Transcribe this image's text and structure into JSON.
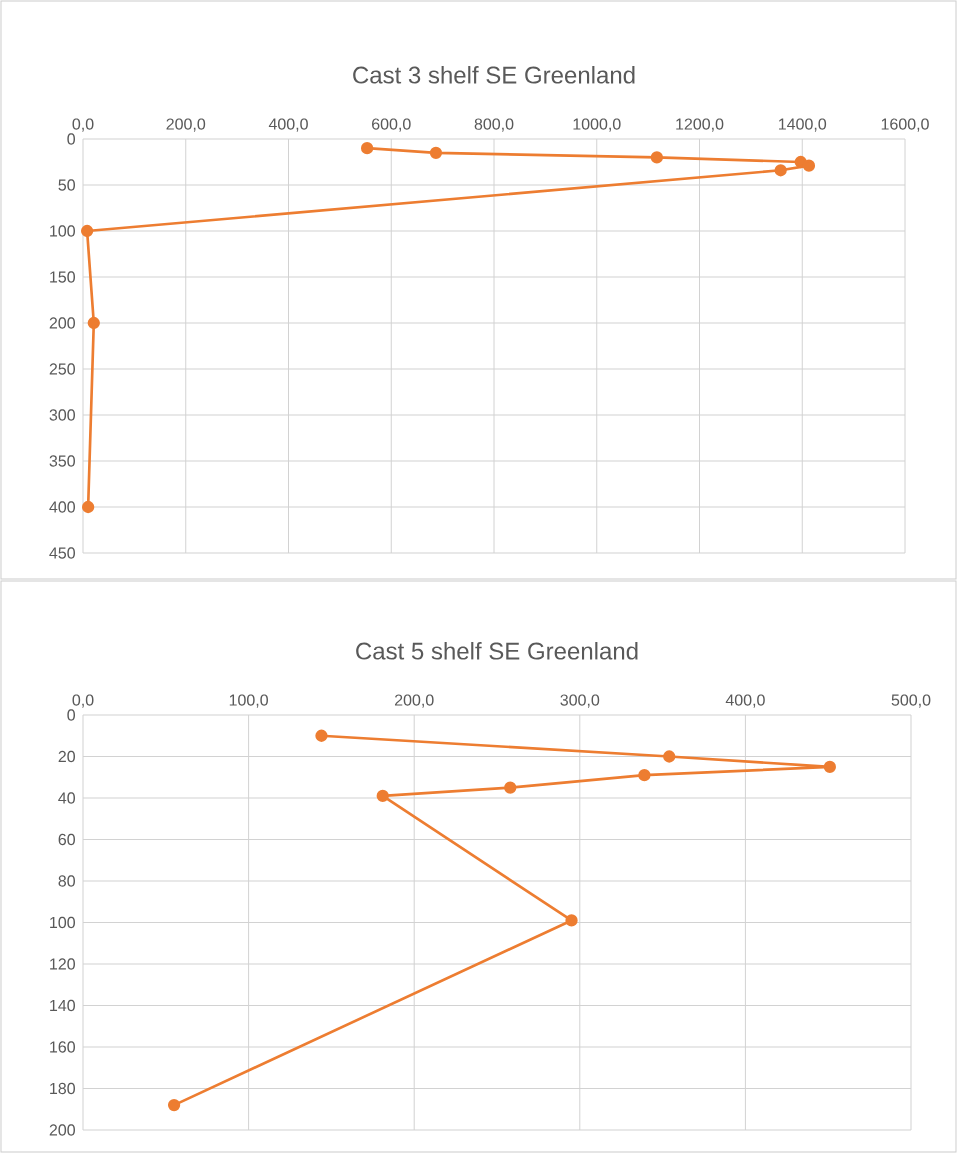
{
  "chart_data": [
    {
      "type": "line",
      "title": "Cast 3 shelf SE Greenland",
      "series": [
        {
          "color": "#ed7d31",
          "x": [
            553,
            687,
            1117,
            1397,
            1413,
            1358,
            8,
            21,
            10
          ],
          "values": [
            10,
            15,
            20,
            25,
            29,
            34,
            100,
            200,
            400
          ]
        }
      ],
      "xlim": [
        0,
        1600
      ],
      "xticks": [
        {
          "value": 0,
          "label": "0,0"
        },
        {
          "value": 200,
          "label": "200,0"
        },
        {
          "value": 400,
          "label": "400,0"
        },
        {
          "value": 600,
          "label": "600,0"
        },
        {
          "value": 800,
          "label": "800,0"
        },
        {
          "value": 1000,
          "label": "1000,0"
        },
        {
          "value": 1200,
          "label": "1200,0"
        },
        {
          "value": 1400,
          "label": "1400,0"
        },
        {
          "value": 1600,
          "label": "1600,0"
        }
      ],
      "ylim": [
        450,
        0
      ],
      "yticks": [
        0,
        50,
        100,
        150,
        200,
        250,
        300,
        350,
        400,
        450
      ],
      "grid": true,
      "marker": "circle",
      "line_style": "solid"
    },
    {
      "type": "line",
      "title": "Cast 5 shelf SE Greenland",
      "series": [
        {
          "color": "#ed7d31",
          "x": [
            144,
            354,
            451,
            339,
            258,
            181,
            295,
            55
          ],
          "values": [
            10,
            20,
            25,
            29,
            35,
            39,
            99,
            188
          ]
        }
      ],
      "xlim": [
        0,
        500
      ],
      "xticks": [
        {
          "value": 0,
          "label": "0,0"
        },
        {
          "value": 100,
          "label": "100,0"
        },
        {
          "value": 200,
          "label": "200,0"
        },
        {
          "value": 300,
          "label": "300,0"
        },
        {
          "value": 400,
          "label": "400,0"
        },
        {
          "value": 500,
          "label": "500,0"
        }
      ],
      "ylim": [
        200,
        0
      ],
      "yticks": [
        0,
        20,
        40,
        60,
        80,
        100,
        120,
        140,
        160,
        180,
        200
      ],
      "grid": true,
      "marker": "circle",
      "line_style": "solid"
    }
  ]
}
